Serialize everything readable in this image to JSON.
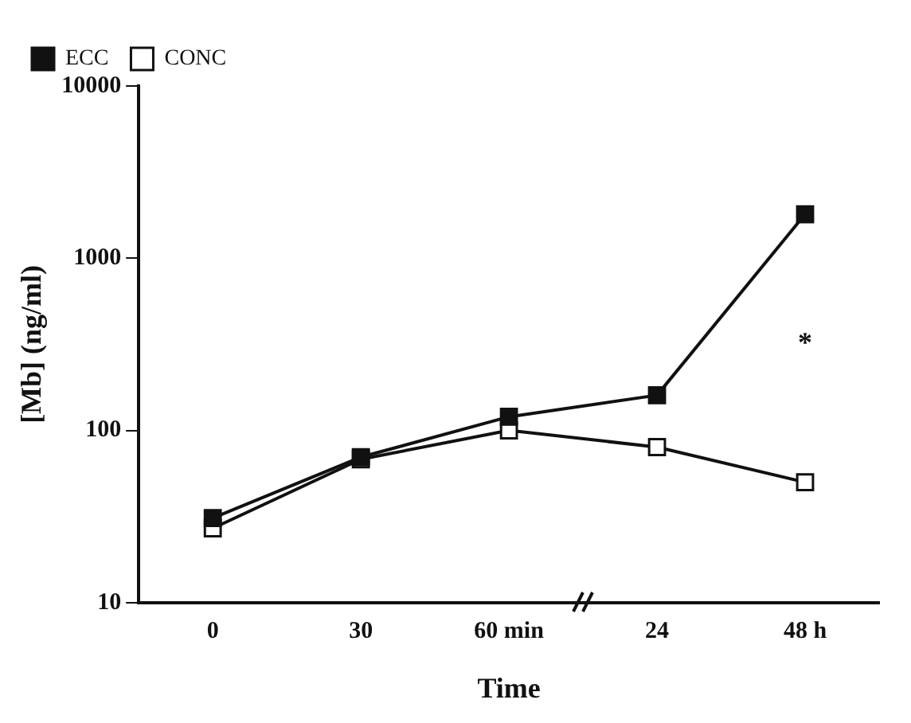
{
  "chart_data": {
    "type": "line",
    "xlabel": "Time",
    "ylabel": "[Mb] (ng/ml)",
    "categories": [
      "0",
      "30",
      "60 min",
      "24",
      "48 h"
    ],
    "series": [
      {
        "name": "ECC",
        "color": "#111111",
        "values": [
          31,
          70,
          120,
          160,
          1800
        ]
      },
      {
        "name": "CONC",
        "color": "#111111",
        "values": [
          27,
          68,
          100,
          80,
          50
        ]
      }
    ],
    "log": "y",
    "ylim": [
      10,
      10000
    ],
    "yticks": [
      10,
      100,
      1000,
      10000
    ],
    "annotations": [
      "*"
    ],
    "grid": false,
    "legend": "top left",
    "marker": "square",
    "line_style": "solid"
  }
}
